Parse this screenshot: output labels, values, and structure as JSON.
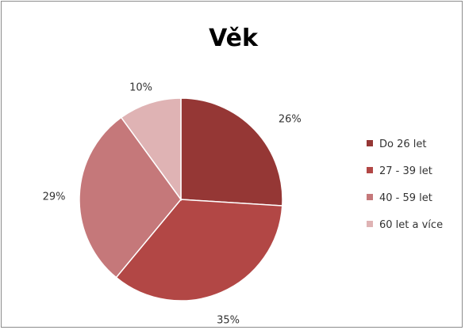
{
  "chart_data": {
    "type": "pie",
    "title": "Věk",
    "categories": [
      "Do 26 let",
      "27 - 39 let",
      "40 - 59 let",
      "60 let a více"
    ],
    "values": [
      26,
      35,
      29,
      10
    ],
    "data_labels": [
      "26%",
      "35%",
      "29%",
      "10%"
    ],
    "colors": [
      "#953735",
      "#b24745",
      "#c5787a",
      "#dfb3b4"
    ],
    "legend_position": "right"
  }
}
